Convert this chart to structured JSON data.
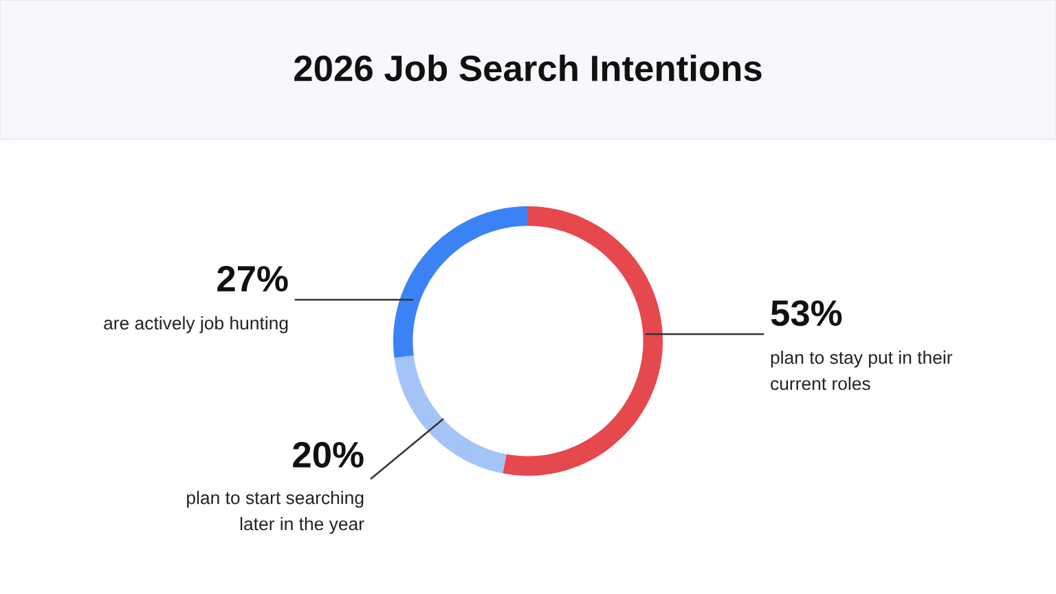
{
  "chart_data": {
    "type": "donut",
    "title": "2026 Job Search Intentions",
    "categories": [
      "plan to stay put in their\ncurrent roles",
      "plan to start searching\nlater in the year",
      "are actively job hunting"
    ],
    "values": [
      53,
      20,
      27
    ],
    "colors": [
      "#e5484d",
      "#a4c4f8",
      "#3b82f6"
    ],
    "value_labels": [
      "53%",
      "20%",
      "27%"
    ]
  }
}
